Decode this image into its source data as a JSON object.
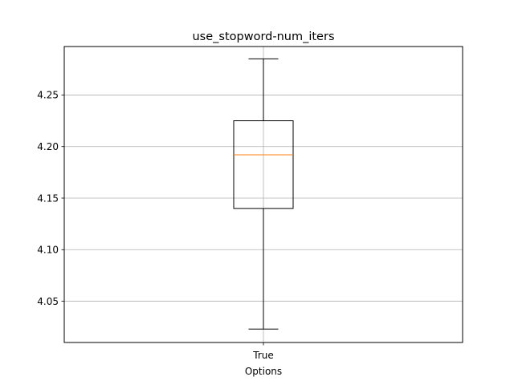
{
  "chart_data": {
    "type": "box",
    "title": "use_stopword-num_iters",
    "xlabel": "Options",
    "ylabel": "",
    "categories": [
      "True"
    ],
    "boxes": [
      {
        "category": "True",
        "whisker_low": 4.023,
        "q1": 4.14,
        "median": 4.192,
        "q3": 4.225,
        "whisker_high": 4.285
      }
    ],
    "ylim": [
      4.01,
      4.297
    ],
    "yticks": [
      4.05,
      4.1,
      4.15,
      4.2,
      4.25
    ],
    "ytick_labels": [
      "4.05",
      "4.10",
      "4.15",
      "4.20",
      "4.25"
    ],
    "grid": true,
    "colors": {
      "box": "#000000",
      "median": "#ff7f0e",
      "grid": "#b0b0b0"
    }
  }
}
